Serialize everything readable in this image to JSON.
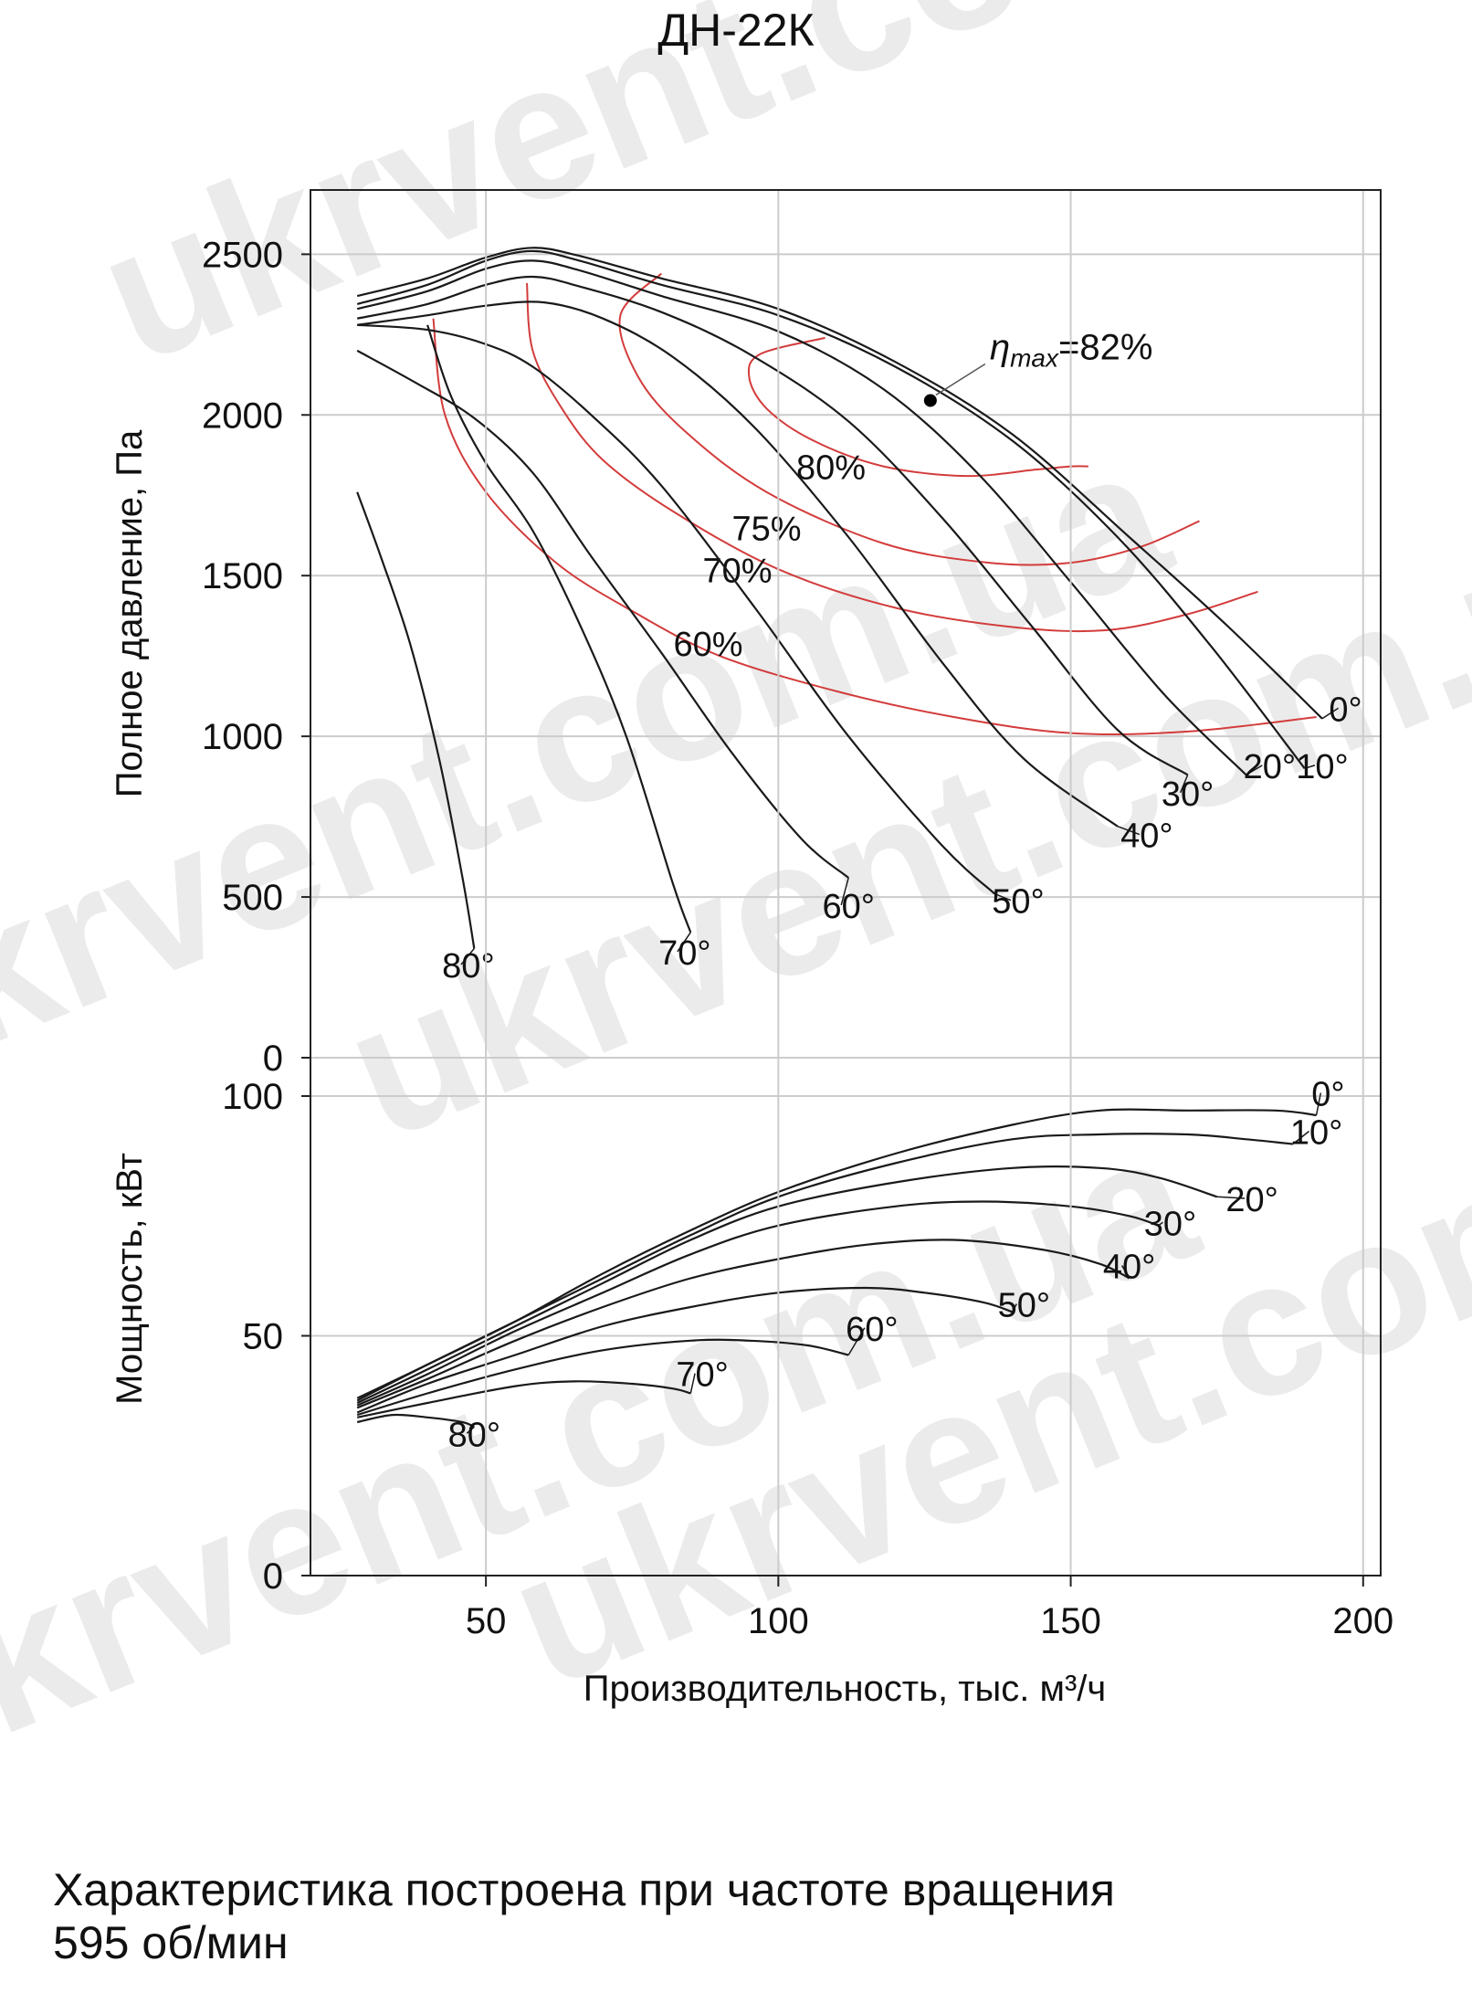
{
  "title": "ДН-22К",
  "watermark": "ukrvent.com.ua",
  "note": {
    "line1": "Характеристика построена при частоте вращения",
    "line2": "595 об/мин"
  },
  "colors": {
    "curve": "#1a1a1a",
    "efficiency": "#d33c3c",
    "grid": "#cccccc"
  },
  "chart_data": [
    {
      "type": "line",
      "ylabel": "Полное давление, Па",
      "xlim": [
        20,
        203
      ],
      "ylim": [
        0,
        2700
      ],
      "yticks": [
        0,
        500,
        1000,
        1500,
        2000,
        2500
      ],
      "grid": true,
      "annotation": {
        "text": "η",
        "subscript": "max",
        "suffix": "=82%",
        "x": 126,
        "y": 2045
      },
      "series": [
        {
          "name": "0°",
          "label": "0°",
          "label_at": [
            197,
            1048
          ],
          "points": [
            [
              28,
              2370
            ],
            [
              40,
              2425
            ],
            [
              50,
              2490
            ],
            [
              58,
              2520
            ],
            [
              66,
              2495
            ],
            [
              80,
              2425
            ],
            [
              100,
              2330
            ],
            [
              120,
              2165
            ],
            [
              140,
              1940
            ],
            [
              160,
              1620
            ],
            [
              177,
              1340
            ],
            [
              193,
              1055
            ]
          ]
        },
        {
          "name": "10°",
          "label": "10°",
          "label_at": [
            193,
            870
          ],
          "points": [
            [
              28,
              2345
            ],
            [
              40,
              2405
            ],
            [
              50,
              2480
            ],
            [
              58,
              2510
            ],
            [
              66,
              2480
            ],
            [
              80,
              2405
            ],
            [
              100,
              2310
            ],
            [
              120,
              2150
            ],
            [
              140,
              1920
            ],
            [
              158,
              1620
            ],
            [
              174,
              1280
            ],
            [
              190,
              900
            ]
          ]
        },
        {
          "name": "20°",
          "label": "20°",
          "label_at": [
            184,
            870
          ],
          "points": [
            [
              28,
              2330
            ],
            [
              40,
              2385
            ],
            [
              50,
              2455
            ],
            [
              58,
              2480
            ],
            [
              66,
              2450
            ],
            [
              80,
              2370
            ],
            [
              100,
              2260
            ],
            [
              118,
              2080
            ],
            [
              134,
              1820
            ],
            [
              150,
              1480
            ],
            [
              166,
              1130
            ],
            [
              180,
              880
            ]
          ]
        },
        {
          "name": "30°",
          "label": "30°",
          "label_at": [
            170,
            785
          ],
          "points": [
            [
              28,
              2300
            ],
            [
              40,
              2345
            ],
            [
              50,
              2405
            ],
            [
              58,
              2430
            ],
            [
              66,
              2400
            ],
            [
              80,
              2320
            ],
            [
              95,
              2190
            ],
            [
              112,
              1980
            ],
            [
              128,
              1680
            ],
            [
              143,
              1350
            ],
            [
              158,
              1020
            ],
            [
              170,
              880
            ]
          ]
        },
        {
          "name": "40°",
          "label": "40°",
          "label_at": [
            163,
            655
          ],
          "points": [
            [
              28,
              2280
            ],
            [
              40,
              2310
            ],
            [
              50,
              2340
            ],
            [
              60,
              2350
            ],
            [
              70,
              2300
            ],
            [
              82,
              2180
            ],
            [
              96,
              1960
            ],
            [
              112,
              1620
            ],
            [
              128,
              1230
            ],
            [
              142,
              930
            ],
            [
              158,
              720
            ]
          ]
        },
        {
          "name": "50°",
          "label": "50°",
          "label_at": [
            141,
            450
          ],
          "points": [
            [
              28,
              2280
            ],
            [
              40,
              2265
            ],
            [
              50,
              2220
            ],
            [
              58,
              2150
            ],
            [
              68,
              2000
            ],
            [
              80,
              1780
            ],
            [
              96,
              1400
            ],
            [
              112,
              1000
            ],
            [
              128,
              660
            ],
            [
              137,
              510
            ]
          ]
        },
        {
          "name": "60°",
          "label": "60°",
          "label_at": [
            112,
            435
          ],
          "points": [
            [
              28,
              2200
            ],
            [
              38,
              2100
            ],
            [
              48,
              1990
            ],
            [
              58,
              1820
            ],
            [
              68,
              1560
            ],
            [
              80,
              1260
            ],
            [
              92,
              950
            ],
            [
              104,
              680
            ],
            [
              112,
              560
            ]
          ]
        },
        {
          "name": "70°",
          "label": "70°",
          "label_at": [
            84,
            290
          ],
          "points": [
            [
              40,
              2280
            ],
            [
              44,
              2060
            ],
            [
              50,
              1850
            ],
            [
              58,
              1640
            ],
            [
              66,
              1350
            ],
            [
              74,
              1000
            ],
            [
              82,
              540
            ],
            [
              85,
              390
            ]
          ]
        },
        {
          "name": "80°",
          "label": "80°",
          "label_at": [
            47,
            250
          ],
          "points": [
            [
              28,
              1760
            ],
            [
              32,
              1560
            ],
            [
              37,
              1290
            ],
            [
              42,
              930
            ],
            [
              46,
              560
            ],
            [
              48,
              340
            ]
          ]
        }
      ],
      "efficiency": [
        {
          "name": "60%",
          "label": "60%",
          "label_at": [
            88,
            1250
          ],
          "points": [
            [
              41,
              2300
            ],
            [
              43,
              2000
            ],
            [
              50,
              1760
            ],
            [
              62,
              1540
            ],
            [
              75,
              1390
            ],
            [
              90,
              1250
            ],
            [
              110,
              1140
            ],
            [
              130,
              1060
            ],
            [
              150,
              1010
            ],
            [
              170,
              1015
            ],
            [
              192,
              1060
            ]
          ]
        },
        {
          "name": "70%",
          "label": "70%",
          "label_at": [
            93,
            1480
          ],
          "points": [
            [
              57,
              2410
            ],
            [
              58,
              2200
            ],
            [
              63,
              2020
            ],
            [
              70,
              1860
            ],
            [
              82,
              1700
            ],
            [
              100,
              1520
            ],
            [
              120,
              1400
            ],
            [
              140,
              1340
            ],
            [
              156,
              1330
            ],
            [
              170,
              1380
            ],
            [
              182,
              1450
            ]
          ]
        },
        {
          "name": "75%",
          "label": "75%",
          "label_at": [
            98,
            1610
          ],
          "points": [
            [
              80,
              2440
            ],
            [
              73,
              2310
            ],
            [
              76,
              2120
            ],
            [
              84,
              1950
            ],
            [
              98,
              1760
            ],
            [
              118,
              1600
            ],
            [
              136,
              1540
            ],
            [
              150,
              1540
            ],
            [
              162,
              1590
            ],
            [
              172,
              1670
            ]
          ]
        },
        {
          "name": "80%",
          "label": "80%",
          "label_at": [
            109,
            1800
          ],
          "points": [
            [
              108,
              2240
            ],
            [
              97,
              2190
            ],
            [
              95,
              2120
            ],
            [
              98,
              2020
            ],
            [
              106,
              1920
            ],
            [
              118,
              1840
            ],
            [
              132,
              1810
            ],
            [
              144,
              1830
            ],
            [
              150,
              1840
            ],
            [
              153,
              1840
            ]
          ]
        }
      ]
    },
    {
      "type": "line",
      "xlabel": "Производительность, тыс. м³/ч",
      "ylabel": "Мощность, кВт",
      "xlim": [
        20,
        203
      ],
      "ylim": [
        0,
        108
      ],
      "xticks": [
        50,
        100,
        150,
        200
      ],
      "yticks": [
        0,
        50,
        100
      ],
      "grid": true,
      "series": [
        {
          "name": "0°",
          "label": "0°",
          "label_at": [
            194,
            98
          ],
          "points": [
            [
              28,
              37
            ],
            [
              40,
              44
            ],
            [
              55,
              53
            ],
            [
              70,
              63
            ],
            [
              85,
              72
            ],
            [
              100,
              80
            ],
            [
              120,
              88
            ],
            [
              140,
              94
            ],
            [
              155,
              97
            ],
            [
              170,
              97
            ],
            [
              185,
              97
            ],
            [
              192,
              96
            ]
          ]
        },
        {
          "name": "10°",
          "label": "10°",
          "label_at": [
            192,
            90
          ],
          "points": [
            [
              28,
              36.5
            ],
            [
              40,
              44
            ],
            [
              55,
              53
            ],
            [
              70,
              62
            ],
            [
              85,
              71
            ],
            [
              100,
              79
            ],
            [
              120,
              86
            ],
            [
              140,
              91
            ],
            [
              155,
              92
            ],
            [
              170,
              92
            ],
            [
              180,
              91
            ],
            [
              188,
              90
            ]
          ]
        },
        {
          "name": "20°",
          "label": "20°",
          "label_at": [
            181,
            76
          ],
          "points": [
            [
              28,
              36
            ],
            [
              40,
              43
            ],
            [
              55,
              52
            ],
            [
              70,
              61
            ],
            [
              85,
              70
            ],
            [
              100,
              77
            ],
            [
              120,
              82
            ],
            [
              140,
              85
            ],
            [
              155,
              85
            ],
            [
              165,
              83
            ],
            [
              175,
              79
            ]
          ]
        },
        {
          "name": "30°",
          "label": "30°",
          "label_at": [
            167,
            71
          ],
          "points": [
            [
              28,
              35.5
            ],
            [
              40,
              42
            ],
            [
              55,
              51
            ],
            [
              70,
              59
            ],
            [
              85,
              67
            ],
            [
              100,
              73
            ],
            [
              120,
              77
            ],
            [
              135,
              78
            ],
            [
              150,
              77
            ],
            [
              160,
              75
            ],
            [
              165,
              73
            ]
          ]
        },
        {
          "name": "40°",
          "label": "40°",
          "label_at": [
            160,
            62
          ],
          "points": [
            [
              28,
              35
            ],
            [
              40,
              41
            ],
            [
              55,
              49
            ],
            [
              70,
              56
            ],
            [
              85,
              62
            ],
            [
              100,
              66
            ],
            [
              115,
              69
            ],
            [
              130,
              70
            ],
            [
              145,
              68
            ],
            [
              155,
              65
            ],
            [
              160,
              62
            ]
          ]
        },
        {
          "name": "50°",
          "label": "50°",
          "label_at": [
            142,
            54
          ],
          "points": [
            [
              28,
              34
            ],
            [
              40,
              40
            ],
            [
              55,
              46
            ],
            [
              70,
              52
            ],
            [
              85,
              56
            ],
            [
              100,
              59
            ],
            [
              115,
              60
            ],
            [
              125,
              59
            ],
            [
              135,
              57
            ],
            [
              140,
              55
            ]
          ]
        },
        {
          "name": "60°",
          "label": "60°",
          "label_at": [
            116,
            49
          ],
          "points": [
            [
              28,
              33.5
            ],
            [
              40,
              38
            ],
            [
              55,
              43
            ],
            [
              70,
              47
            ],
            [
              85,
              49
            ],
            [
              95,
              49
            ],
            [
              105,
              48
            ],
            [
              112,
              46
            ]
          ]
        },
        {
          "name": "70°",
          "label": "70°",
          "label_at": [
            87,
            39.5
          ],
          "points": [
            [
              28,
              33
            ],
            [
              40,
              36
            ],
            [
              55,
              39.5
            ],
            [
              65,
              40.5
            ],
            [
              75,
              40
            ],
            [
              82,
              39
            ],
            [
              85,
              38
            ]
          ]
        },
        {
          "name": "80°",
          "label": "80°",
          "label_at": [
            48,
            27
          ],
          "points": [
            [
              28,
              32
            ],
            [
              34,
              33.5
            ],
            [
              40,
              33
            ],
            [
              46,
              32
            ],
            [
              48,
              31
            ]
          ]
        }
      ]
    }
  ]
}
